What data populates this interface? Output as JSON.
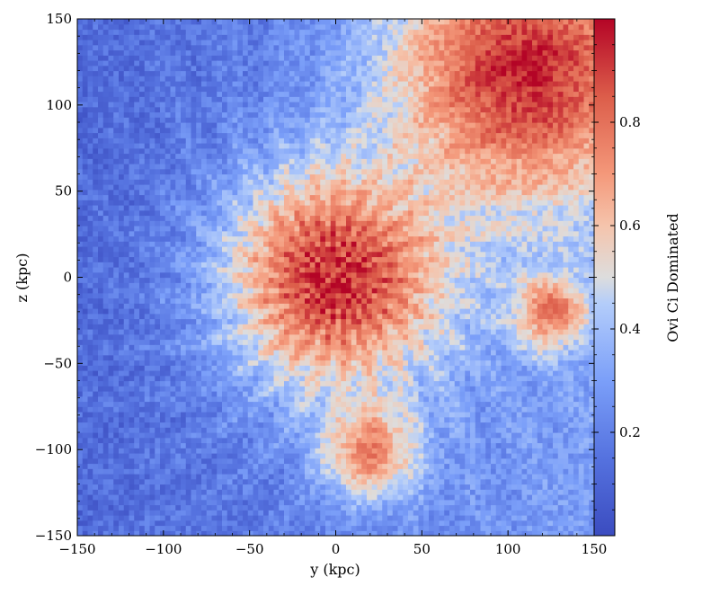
{
  "chart_data": {
    "type": "heatmap",
    "title": "",
    "xlabel": "y  (kpc)",
    "ylabel": "z  (kpc)",
    "xlim": [
      -150,
      150
    ],
    "ylim": [
      -150,
      150
    ],
    "xticks": [
      "−150",
      "−100",
      "−50",
      "0",
      "50",
      "100",
      "150"
    ],
    "xtick_values": [
      -150,
      -100,
      -50,
      0,
      50,
      100,
      150
    ],
    "yticks": [
      "150",
      "100",
      "50",
      "0",
      "−50",
      "−100",
      "−150"
    ],
    "ytick_values": [
      150,
      100,
      50,
      0,
      -50,
      -100,
      -150
    ],
    "colorbar": {
      "label": "Ovi Ci Dominated",
      "range": [
        0,
        1
      ],
      "ticks": [
        "0.2",
        "0.4",
        "0.6",
        "0.8"
      ],
      "tick_values": [
        0.2,
        0.4,
        0.6,
        0.8
      ],
      "colormap": "coolwarm",
      "low_color": "#3b4cc0",
      "mid_color": "#dddddd",
      "high_color": "#b40426"
    },
    "features": [
      {
        "region": "central core",
        "center": [
          0,
          0
        ],
        "radius_kpc": 45,
        "value": 0.95
      },
      {
        "region": "upper-right lobe",
        "center": [
          110,
          120
        ],
        "radius_kpc": 55,
        "value": 0.95
      },
      {
        "region": "lower streamer",
        "center": [
          20,
          -100
        ],
        "radius_kpc": 20,
        "value": 0.75
      },
      {
        "region": "right-middle clumps",
        "center": [
          125,
          -20
        ],
        "radius_kpc": 15,
        "value": 0.8
      }
    ]
  }
}
